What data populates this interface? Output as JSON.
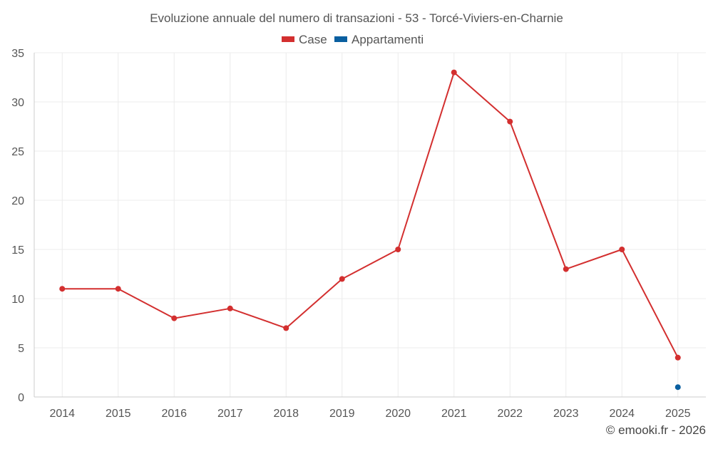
{
  "chart_data": {
    "type": "line",
    "title": "Evoluzione annuale del numero di transazioni - 53 - Torcé-Viviers-en-Charnie",
    "categories": [
      "2014",
      "2015",
      "2016",
      "2017",
      "2018",
      "2019",
      "2020",
      "2021",
      "2022",
      "2023",
      "2024",
      "2025"
    ],
    "series": [
      {
        "name": "Case",
        "color": "#d32f2f",
        "values": [
          11,
          11,
          8,
          9,
          7,
          12,
          15,
          33,
          28,
          13,
          15,
          4
        ]
      },
      {
        "name": "Appartamenti",
        "color": "#0a5fa0",
        "values": [
          null,
          null,
          null,
          null,
          null,
          null,
          null,
          null,
          null,
          null,
          null,
          1
        ]
      }
    ],
    "xlabel": "",
    "ylabel": "",
    "ylim": [
      0,
      35
    ],
    "yticks": [
      "0",
      "5",
      "10",
      "15",
      "20",
      "25",
      "30",
      "35"
    ],
    "grid": true,
    "legend_position": "top-center"
  },
  "footer": {
    "credit": "© emooki.fr - 2026"
  }
}
